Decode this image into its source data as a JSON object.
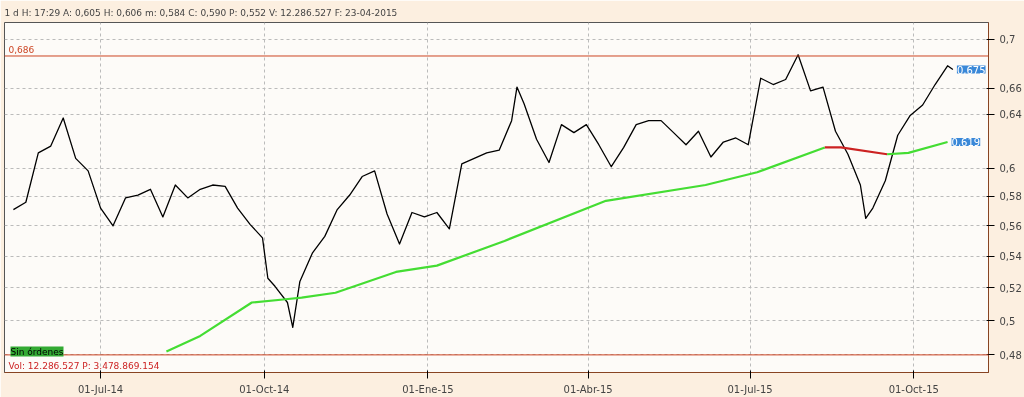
{
  "chart_data": {
    "type": "line",
    "title": "1 d H: 17:29 A: 0,605 H: 0,606 m: 0,584 C: 0,590 P: 0,552 V: 12.286.527 F: 23-04-2015",
    "log": true,
    "grid": true,
    "marker": "none",
    "line_style": "solid",
    "ylim": [
      0.47,
      0.714
    ],
    "yticks": [
      {
        "value": 0.48,
        "label": "0,48"
      },
      {
        "value": 0.5,
        "label": "0,5"
      },
      {
        "value": 0.52,
        "label": "0,52"
      },
      {
        "value": 0.54,
        "label": "0,54"
      },
      {
        "value": 0.56,
        "label": "0,56"
      },
      {
        "value": 0.58,
        "label": "0,58"
      },
      {
        "value": 0.6,
        "label": "0,6"
      },
      {
        "value": 0.64,
        "label": "0,64"
      },
      {
        "value": 0.66,
        "label": "0,66"
      },
      {
        "value": 0.7,
        "label": "0,7"
      }
    ],
    "xlim": [
      "2014-05-08",
      "2015-11-12"
    ],
    "xticks": [
      {
        "value": "2014-07-01",
        "label": "01-Jul-14"
      },
      {
        "value": "2014-10-01",
        "label": "01-Oct-14"
      },
      {
        "value": "2015-01-01",
        "label": "01-Ene-15"
      },
      {
        "value": "2015-04-01",
        "label": "01-Abr-15"
      },
      {
        "value": "2015-07-01",
        "label": "01-Jul-15"
      },
      {
        "value": "2015-10-01",
        "label": "01-Oct-15"
      }
    ],
    "series": [
      {
        "color": "#000000",
        "x": [
          "2014-05-13",
          "2014-05-20",
          "2014-05-27",
          "2014-06-03",
          "2014-06-10",
          "2014-06-17",
          "2014-06-24",
          "2014-07-01",
          "2014-07-08",
          "2014-07-15",
          "2014-07-22",
          "2014-07-29",
          "2014-08-05",
          "2014-08-12",
          "2014-08-19",
          "2014-08-26",
          "2014-09-02",
          "2014-09-09",
          "2014-09-16",
          "2014-09-23",
          "2014-09-30",
          "2014-10-03",
          "2014-10-07",
          "2014-10-14",
          "2014-10-17",
          "2014-10-21",
          "2014-10-28",
          "2014-11-04",
          "2014-11-11",
          "2014-11-18",
          "2014-11-25",
          "2014-12-02",
          "2014-12-09",
          "2014-12-16",
          "2014-12-23",
          "2014-12-30",
          "2015-01-06",
          "2015-01-13",
          "2015-01-20",
          "2015-01-27",
          "2015-02-03",
          "2015-02-10",
          "2015-02-17",
          "2015-02-20",
          "2015-02-24",
          "2015-03-03",
          "2015-03-10",
          "2015-03-17",
          "2015-03-24",
          "2015-03-31",
          "2015-04-07",
          "2015-04-14",
          "2015-04-21",
          "2015-04-28",
          "2015-05-05",
          "2015-05-12",
          "2015-05-19",
          "2015-05-26",
          "2015-06-02",
          "2015-06-09",
          "2015-06-16",
          "2015-06-23",
          "2015-06-30",
          "2015-07-07",
          "2015-07-14",
          "2015-07-21",
          "2015-07-28",
          "2015-08-04",
          "2015-08-11",
          "2015-08-18",
          "2015-08-25",
          "2015-09-01",
          "2015-09-04",
          "2015-09-08",
          "2015-09-15",
          "2015-09-22",
          "2015-09-29",
          "2015-10-06",
          "2015-10-13",
          "2015-10-20",
          "2015-10-23"
        ],
        "values": [
          0.571,
          0.576,
          0.611,
          0.616,
          0.637,
          0.607,
          0.598,
          0.572,
          0.56,
          0.579,
          0.581,
          0.585,
          0.566,
          0.588,
          0.579,
          0.585,
          0.588,
          0.587,
          0.572,
          0.561,
          0.552,
          0.526,
          0.521,
          0.511,
          0.496,
          0.524,
          0.542,
          0.553,
          0.571,
          0.581,
          0.594,
          0.598,
          0.568,
          0.548,
          0.569,
          0.566,
          0.569,
          0.558,
          0.603,
          0.607,
          0.611,
          0.613,
          0.635,
          0.661,
          0.648,
          0.621,
          0.604,
          0.632,
          0.626,
          0.632,
          0.617,
          0.601,
          0.615,
          0.632,
          0.635,
          0.635,
          0.626,
          0.617,
          0.627,
          0.608,
          0.619,
          0.622,
          0.617,
          0.668,
          0.663,
          0.667,
          0.687,
          0.658,
          0.661,
          0.627,
          0.61,
          0.588,
          0.565,
          0.572,
          0.591,
          0.624,
          0.639,
          0.647,
          0.663,
          0.678,
          0.675
        ]
      },
      {
        "color": "#44dd33",
        "x": [
          "2014-08-07",
          "2014-08-26",
          "2014-09-24",
          "2014-10-13",
          "2014-10-22",
          "2014-11-10",
          "2014-12-14",
          "2015-01-06",
          "2015-02-13",
          "2015-04-11",
          "2015-06-06",
          "2015-07-05",
          "2015-08-12"
        ],
        "values": [
          0.482,
          0.491,
          0.511,
          0.513,
          0.514,
          0.517,
          0.53,
          0.534,
          0.55,
          0.577,
          0.588,
          0.597,
          0.615
        ]
      },
      {
        "color": "#cc2222",
        "x": [
          "2015-08-12",
          "2015-08-21",
          "2015-09-16"
        ],
        "values": [
          0.615,
          0.615,
          0.61
        ]
      },
      {
        "color": "#44dd33",
        "x": [
          "2015-09-16",
          "2015-09-28",
          "2015-10-20"
        ],
        "values": [
          0.61,
          0.611,
          0.619
        ]
      }
    ],
    "ref_lines": [
      {
        "axis": "y",
        "value": 0.686,
        "label": "0,686",
        "color": "#cc4422"
      },
      {
        "axis": "y",
        "value": 0.48,
        "label": null,
        "color": "#cc4422"
      }
    ],
    "annotations": [
      "Sin órdenes",
      "Vol: 12.286.527 P: 3.478.869.154",
      {
        "text": "0,675",
        "x": "2015-10-23",
        "y": 0.675
      },
      {
        "text": "0,619",
        "x": "2015-10-20",
        "y": 0.619
      }
    ]
  }
}
